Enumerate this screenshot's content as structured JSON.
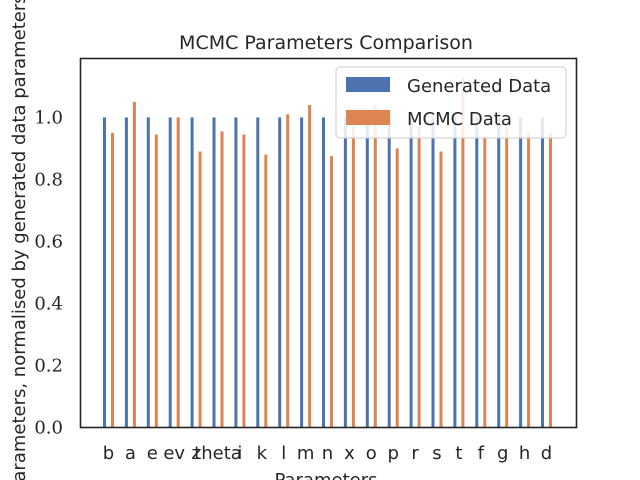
{
  "chart_data": {
    "type": "bar",
    "title": "MCMC Parameters Comparison",
    "xlabel": "Parameters",
    "ylabel": "Parameters, normalised by generated data parameters",
    "categories": [
      "b",
      "a",
      "e",
      "ev",
      "z",
      "theta",
      "i",
      "k",
      "l",
      "m",
      "n",
      "x",
      "o",
      "p",
      "r",
      "s",
      "t",
      "f",
      "g",
      "h",
      "d"
    ],
    "series": [
      {
        "name": "Generated Data",
        "color": "#4c72b0",
        "values": [
          1.0,
          1.0,
          1.0,
          1.0,
          1.0,
          1.0,
          1.0,
          1.0,
          1.0,
          1.0,
          1.0,
          1.0,
          1.0,
          1.0,
          1.0,
          1.0,
          1.0,
          1.0,
          1.0,
          1.0,
          1.0
        ]
      },
      {
        "name": "MCMC Data",
        "color": "#dd8452",
        "values": [
          0.95,
          1.05,
          0.945,
          1.0,
          0.89,
          0.955,
          0.945,
          0.88,
          1.01,
          1.04,
          0.875,
          0.97,
          1.04,
          0.9,
          0.97,
          0.89,
          1.13,
          0.94,
          0.97,
          0.95,
          0.95
        ]
      }
    ],
    "ylim": [
      0,
      1.19
    ],
    "yticks": [
      "0.0",
      "0.2",
      "0.4",
      "0.6",
      "0.8",
      "1.0"
    ],
    "ytick_values": [
      0,
      0.2,
      0.4,
      0.6,
      0.8,
      1.0
    ],
    "legend": "top-right",
    "grid": false
  }
}
